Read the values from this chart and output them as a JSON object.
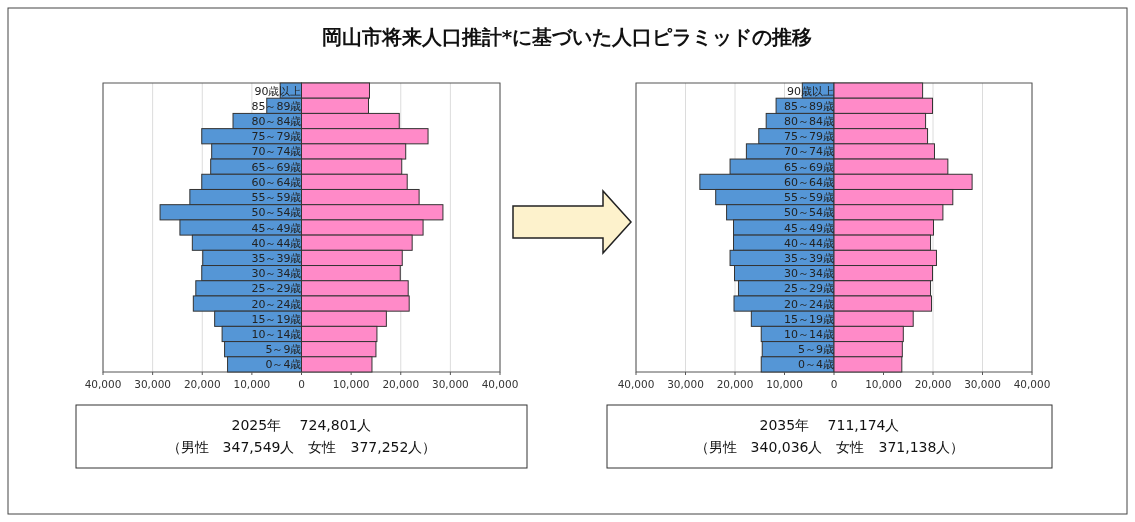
{
  "chart_data": [
    {
      "type": "bar",
      "orientation": "horizontal",
      "title": "岡山市将来人口推計*に基づいた人口ピラミッドの推移",
      "categories": [
        "90歳以上",
        "85～89歳",
        "80～84歳",
        "75～79歳",
        "70～74歳",
        "65～69歳",
        "60～64歳",
        "55～59歳",
        "50～54歳",
        "45～49歳",
        "40～44歳",
        "35～39歳",
        "30～34歳",
        "25～29歳",
        "20～24歳",
        "15～19歳",
        "10～14歳",
        "5～9歳",
        "0～4歳"
      ],
      "series": [
        {
          "color": "#5596d6",
          "values": [
            -4300,
            -7000,
            -13800,
            -20100,
            -18100,
            -18300,
            -20100,
            -22500,
            -28500,
            -24500,
            -22000,
            -19900,
            -20100,
            -21300,
            -21800,
            -17500,
            -16000,
            -15500,
            -14900
          ]
        },
        {
          "color": "#ff8ac8",
          "values": [
            13700,
            13500,
            19700,
            25500,
            21000,
            20200,
            21300,
            23700,
            28500,
            24500,
            22300,
            20300,
            19900,
            21500,
            21700,
            17100,
            15200,
            15000,
            14200
          ]
        }
      ],
      "xlim": [
        -40000,
        40000
      ],
      "xticks": [
        {
          "value": -40000,
          "label": "40,000"
        },
        {
          "value": -30000,
          "label": "30,000"
        },
        {
          "value": -20000,
          "label": "20,000"
        },
        {
          "value": -10000,
          "label": "10,000"
        },
        0,
        {
          "value": 10000,
          "label": "10,000"
        },
        {
          "value": 20000,
          "label": "20,000"
        },
        {
          "value": 30000,
          "label": "30,000"
        },
        {
          "value": 40000,
          "label": "40,000"
        }
      ],
      "grid": "x",
      "stacked": true,
      "annotations": [
        "2025年　 724,801人",
        "（男性　347,549人　女性　377,252人）"
      ]
    },
    {
      "type": "bar",
      "orientation": "horizontal",
      "categories": [
        "90歳以上",
        "85～89歳",
        "80～84歳",
        "75～79歳",
        "70～74歳",
        "65～69歳",
        "60～64歳",
        "55～59歳",
        "50～54歳",
        "45～49歳",
        "40～44歳",
        "35～39歳",
        "30～34歳",
        "25～29歳",
        "20～24歳",
        "15～19歳",
        "10～14歳",
        "5～9歳",
        "0～4歳"
      ],
      "series": [
        {
          "color": "#5596d6",
          "values": [
            -6400,
            -11700,
            -13700,
            -15200,
            -17700,
            -21000,
            -27100,
            -23900,
            -21700,
            -20300,
            -20300,
            -21000,
            -20100,
            -19300,
            -20200,
            -16700,
            -14700,
            -14500,
            -14700
          ]
        },
        {
          "color": "#ff8ac8",
          "values": [
            17900,
            19900,
            18500,
            18900,
            20300,
            23000,
            27900,
            24000,
            22000,
            20100,
            19500,
            20700,
            19900,
            19500,
            19700,
            16000,
            14000,
            13800,
            13700
          ]
        }
      ],
      "xlim": [
        -40000,
        40000
      ],
      "xticks": [
        {
          "value": -40000,
          "label": "40,000"
        },
        {
          "value": -30000,
          "label": "30,000"
        },
        {
          "value": -20000,
          "label": "20,000"
        },
        {
          "value": -10000,
          "label": "10,000"
        },
        0,
        {
          "value": 10000,
          "label": "10,000"
        },
        {
          "value": 20000,
          "label": "20,000"
        },
        {
          "value": 30000,
          "label": "30,000"
        },
        {
          "value": 40000,
          "label": "40,000"
        }
      ],
      "grid": "x",
      "stacked": true,
      "annotations": [
        "2035年　 711,174人",
        "（男性　340,036人　女性　371,138人）"
      ]
    }
  ]
}
